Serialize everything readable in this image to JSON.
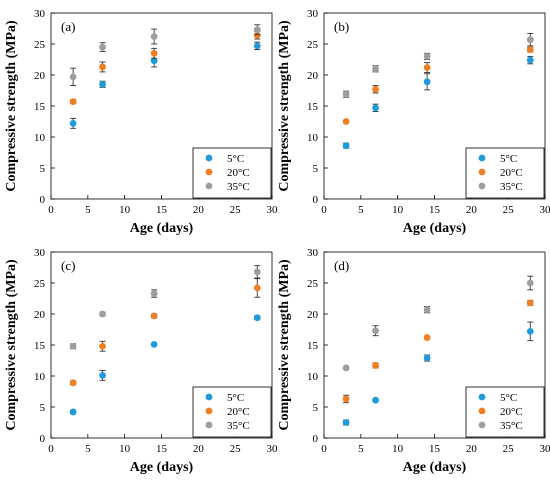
{
  "chart_data": [
    {
      "type": "scatter",
      "panel_label": "(a)",
      "xlabel": "Age (days)",
      "ylabel": "Compressive strength (MPa)",
      "xlim": [
        0,
        30
      ],
      "ylim": [
        0,
        30
      ],
      "xticks": [
        0,
        5,
        10,
        15,
        20,
        25,
        30
      ],
      "yticks": [
        0,
        5,
        10,
        15,
        20,
        25,
        30
      ],
      "legend_position": "bottom-right",
      "x": [
        3,
        7,
        14,
        28
      ],
      "series": [
        {
          "name": "5°C",
          "color": "#1f9bd7",
          "values": [
            12.2,
            18.5,
            22.3,
            24.7
          ],
          "errors": [
            0.8,
            0.5,
            1.0,
            0.6
          ]
        },
        {
          "name": "20°C",
          "color": "#f07f24",
          "values": [
            15.7,
            21.3,
            23.5,
            26.4
          ],
          "errors": [
            0.3,
            0.8,
            0.8,
            0.6
          ]
        },
        {
          "name": "35°C",
          "color": "#9e9e9e",
          "values": [
            19.7,
            24.5,
            26.2,
            27.3
          ],
          "errors": [
            1.4,
            0.7,
            1.2,
            0.8
          ]
        }
      ]
    },
    {
      "type": "scatter",
      "panel_label": "(b)",
      "xlabel": "Age (days)",
      "ylabel": "Compressive strength (MPa)",
      "xlim": [
        0,
        30
      ],
      "ylim": [
        0,
        30
      ],
      "xticks": [
        0,
        5,
        10,
        15,
        20,
        25,
        30
      ],
      "yticks": [
        0,
        5,
        10,
        15,
        20,
        25,
        30
      ],
      "legend_position": "bottom-right",
      "x": [
        3,
        7,
        14,
        28
      ],
      "series": [
        {
          "name": "5°C",
          "color": "#1f9bd7",
          "values": [
            8.6,
            14.7,
            18.9,
            22.4
          ],
          "errors": [
            0.4,
            0.6,
            1.3,
            0.6
          ]
        },
        {
          "name": "20°C",
          "color": "#f07f24",
          "values": [
            12.5,
            17.7,
            21.2,
            24.1
          ],
          "errors": [
            0.2,
            0.6,
            0.8,
            0.4
          ]
        },
        {
          "name": "35°C",
          "color": "#9e9e9e",
          "values": [
            16.9,
            21.0,
            23.0,
            25.7
          ],
          "errors": [
            0.5,
            0.5,
            0.5,
            1.0
          ]
        }
      ]
    },
    {
      "type": "scatter",
      "panel_label": "(c)",
      "xlabel": "Age (days)",
      "ylabel": "Compressive strength (MPa)",
      "xlim": [
        0,
        30
      ],
      "ylim": [
        0,
        30
      ],
      "xticks": [
        0,
        5,
        10,
        15,
        20,
        25,
        30
      ],
      "yticks": [
        0,
        5,
        10,
        15,
        20,
        25,
        30
      ],
      "legend_position": "bottom-right",
      "x": [
        3,
        7,
        14,
        28
      ],
      "series": [
        {
          "name": "5°C",
          "color": "#1f9bd7",
          "values": [
            4.2,
            10.1,
            15.1,
            19.4
          ],
          "errors": [
            0.2,
            0.8,
            0.2,
            0.3
          ]
        },
        {
          "name": "20°C",
          "color": "#f07f24",
          "values": [
            8.9,
            14.8,
            19.7,
            24.2
          ],
          "errors": [
            0.3,
            0.8,
            0.3,
            1.5
          ]
        },
        {
          "name": "35°C",
          "color": "#9e9e9e",
          "values": [
            14.8,
            20.0,
            23.3,
            26.8
          ],
          "errors": [
            0.4,
            0.3,
            0.6,
            1.0
          ]
        }
      ]
    },
    {
      "type": "scatter",
      "panel_label": "(d)",
      "xlabel": "Age (days)",
      "ylabel": "Compressive strength (MPa)",
      "xlim": [
        0,
        30
      ],
      "ylim": [
        0,
        30
      ],
      "xticks": [
        0,
        5,
        10,
        15,
        20,
        25,
        30
      ],
      "yticks": [
        0,
        5,
        10,
        15,
        20,
        25,
        30
      ],
      "legend_position": "bottom-right",
      "x": [
        3,
        7,
        14,
        28
      ],
      "series": [
        {
          "name": "5°C",
          "color": "#1f9bd7",
          "values": [
            2.5,
            6.1,
            12.9,
            17.2
          ],
          "errors": [
            0.4,
            0.2,
            0.5,
            1.5
          ]
        },
        {
          "name": "20°C",
          "color": "#f07f24",
          "values": [
            6.3,
            11.7,
            16.2,
            21.8
          ],
          "errors": [
            0.6,
            0.4,
            0.2,
            0.4
          ]
        },
        {
          "name": "35°C",
          "color": "#9e9e9e",
          "values": [
            11.3,
            17.3,
            20.7,
            25.0
          ],
          "errors": [
            0.2,
            0.8,
            0.5,
            1.1
          ]
        }
      ]
    }
  ]
}
